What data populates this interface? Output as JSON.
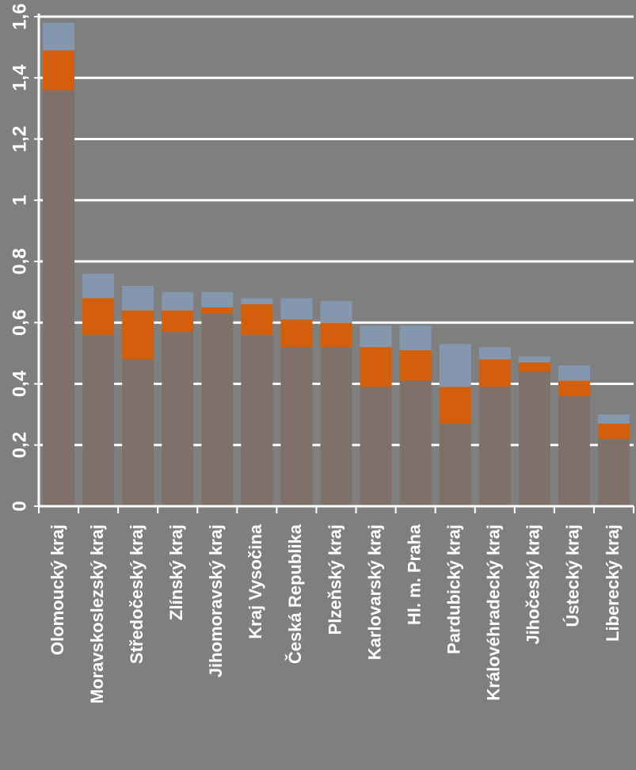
{
  "chart_data": {
    "type": "bar",
    "stacked": true,
    "categories": [
      "Olomoucký kraj",
      "Moravskoslezský kraj",
      "Středočeský kraj",
      "Zlínský kraj",
      "Jihomoravský kraj",
      "Kraj Vysočina",
      "Česká Republika",
      "Plzeňský kraj",
      "Karlovarský kraj",
      "Hl. m. Praha",
      "Pardubický kraj",
      "Královéhradecký kraj",
      "Jihočeský kraj",
      "Ústecký kraj",
      "Liberecký kraj"
    ],
    "series": [
      {
        "color": "#7f7069",
        "values": [
          1.36,
          0.56,
          0.48,
          0.57,
          0.63,
          0.56,
          0.52,
          0.52,
          0.39,
          0.41,
          0.27,
          0.39,
          0.44,
          0.36,
          0.22
        ]
      },
      {
        "color": "#d35f0c",
        "values": [
          0.13,
          0.12,
          0.16,
          0.07,
          0.02,
          0.1,
          0.09,
          0.08,
          0.13,
          0.1,
          0.12,
          0.09,
          0.03,
          0.05,
          0.05
        ]
      },
      {
        "color": "#8497ae",
        "values": [
          0.09,
          0.08,
          0.08,
          0.06,
          0.05,
          0.02,
          0.07,
          0.07,
          0.07,
          0.08,
          0.14,
          0.04,
          0.02,
          0.05,
          0.03
        ]
      }
    ],
    "yticks": [
      "0",
      "0,2",
      "0,4",
      "0,6",
      "0,8",
      "1",
      "1,2",
      "1,4",
      "1,6"
    ],
    "ylim": [
      0,
      1.6
    ],
    "grid": true,
    "title": "",
    "xlabel": "",
    "ylabel": ""
  }
}
